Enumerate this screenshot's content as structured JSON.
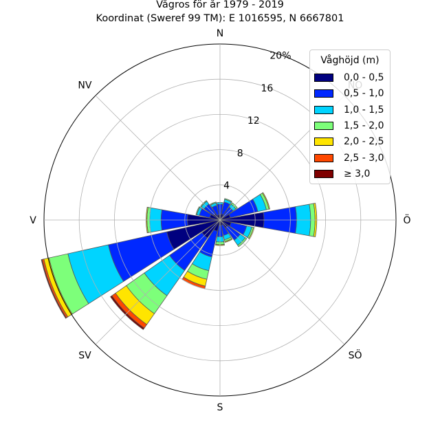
{
  "title": {
    "line1": "Vågros för år 1979 - 2019",
    "line2": "Koordinat (Sweref 99 TM): E 1016595, N 6667801"
  },
  "chart_data": {
    "type": "polar-stacked-bar",
    "radial_unit": "%",
    "radial_ticks": [
      4,
      8,
      12,
      16,
      20
    ],
    "radial_tick_labels": [
      "4",
      "8",
      "12",
      "16",
      "20%"
    ],
    "rmax": 20,
    "grid": true,
    "direction_labels": [
      "N",
      "NO",
      "Ö",
      "SÖ",
      "S",
      "SV",
      "V",
      "NV"
    ],
    "legend_title": "Våghöjd (m)",
    "legend_position": "top-right",
    "bins": [
      "0,0 - 0,5",
      "0,5 - 1,0",
      "1,0 - 1,5",
      "1,5 - 2,0",
      "2,0 - 2,5",
      "2,5 - 3,0",
      "≥ 3,0"
    ],
    "bin_colors": [
      "#00007f",
      "#0028ff",
      "#00d4ff",
      "#7dff7a",
      "#ffe500",
      "#ff4800",
      "#7f0000"
    ],
    "sectors": [
      {
        "direction": 0,
        "values": [
          0.6,
          1.2,
          0.2,
          0.0,
          0.0,
          0.0,
          0.0
        ]
      },
      {
        "direction": 22.5,
        "values": [
          0.7,
          1.4,
          0.3,
          0.1,
          0.0,
          0.0,
          0.0
        ]
      },
      {
        "direction": 45,
        "values": [
          0.6,
          1.2,
          0.4,
          0.2,
          0.0,
          0.0,
          0.0
        ]
      },
      {
        "direction": 67.5,
        "values": [
          1.2,
          3.2,
          1.0,
          0.3,
          0.1,
          0.0,
          0.0
        ]
      },
      {
        "direction": 90,
        "values": [
          5.0,
          3.7,
          1.6,
          0.5,
          0.2,
          0.0,
          0.0
        ]
      },
      {
        "direction": 112.5,
        "values": [
          1.3,
          1.8,
          0.6,
          0.2,
          0.1,
          0.0,
          0.0
        ]
      },
      {
        "direction": 135,
        "values": [
          1.1,
          1.7,
          0.7,
          0.2,
          0.0,
          0.0,
          0.0
        ]
      },
      {
        "direction": 157.5,
        "values": [
          0.6,
          1.2,
          0.5,
          0.2,
          0.1,
          0.0,
          0.0
        ]
      },
      {
        "direction": 180,
        "values": [
          0.6,
          1.3,
          0.6,
          0.3,
          0.1,
          0.0,
          0.0
        ]
      },
      {
        "direction": 202.5,
        "values": [
          1.3,
          3.0,
          1.6,
          1.0,
          0.8,
          0.3,
          0.0
        ]
      },
      {
        "direction": 225,
        "values": [
          2.5,
          4.5,
          3.5,
          2.5,
          1.5,
          0.5,
          0.2
        ]
      },
      {
        "direction": 247.5,
        "values": [
          6.2,
          6.8,
          4.7,
          2.2,
          0.6,
          0.2,
          0.1
        ]
      },
      {
        "direction": 270,
        "values": [
          3.7,
          3.0,
          1.3,
          0.3,
          0.1,
          0.0,
          0.0
        ]
      },
      {
        "direction": 292.5,
        "values": [
          1.2,
          1.2,
          0.3,
          0.1,
          0.0,
          0.0,
          0.0
        ]
      },
      {
        "direction": 315,
        "values": [
          0.9,
          1.3,
          0.4,
          0.1,
          0.0,
          0.0,
          0.0
        ]
      },
      {
        "direction": 337.5,
        "values": [
          0.6,
          1.1,
          0.3,
          0.1,
          0.0,
          0.0,
          0.0
        ]
      }
    ]
  }
}
